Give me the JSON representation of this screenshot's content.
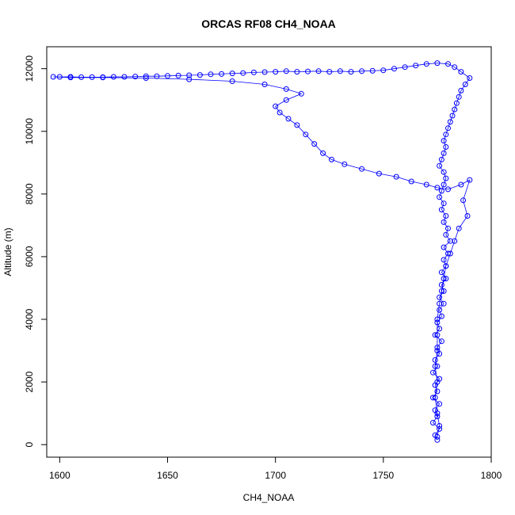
{
  "chart_data": {
    "type": "scatter",
    "title": "ORCAS RF08 CH4_NOAA",
    "xlabel": "CH4_NOAA",
    "ylabel": "Altitude (m)",
    "xlim": [
      1594,
      1800
    ],
    "ylim": [
      -400,
      12700
    ],
    "x_ticks": [
      1600,
      1650,
      1700,
      1750,
      1800
    ],
    "y_ticks": [
      0,
      2000,
      4000,
      6000,
      8000,
      10000,
      12000
    ],
    "grid": false,
    "legend": "none",
    "marker": "open-circle",
    "connect_points": true,
    "series": [
      {
        "color": "#0000ff",
        "points": [
          [
            1775,
            150
          ],
          [
            1774,
            300
          ],
          [
            1776,
            500
          ],
          [
            1773,
            700
          ],
          [
            1775,
            900
          ],
          [
            1774,
            1100
          ],
          [
            1776,
            1300
          ],
          [
            1773,
            1500
          ],
          [
            1775,
            1700
          ],
          [
            1774,
            1900
          ],
          [
            1776,
            2100
          ],
          [
            1773,
            2300
          ],
          [
            1775,
            2500
          ],
          [
            1774,
            2700
          ],
          [
            1776,
            2900
          ],
          [
            1775,
            3100
          ],
          [
            1777,
            3300
          ],
          [
            1774,
            3500
          ],
          [
            1776,
            3700
          ],
          [
            1775,
            3900
          ],
          [
            1777,
            4100
          ],
          [
            1776,
            4300
          ],
          [
            1778,
            4500
          ],
          [
            1776,
            4700
          ],
          [
            1778,
            4900
          ],
          [
            1777,
            5100
          ],
          [
            1779,
            5300
          ],
          [
            1777,
            5500
          ],
          [
            1779,
            5700
          ],
          [
            1778,
            5900
          ],
          [
            1780,
            6100
          ],
          [
            1778,
            6300
          ],
          [
            1781,
            6500
          ],
          [
            1779,
            6700
          ],
          [
            1780,
            6900
          ],
          [
            1778,
            7100
          ],
          [
            1779,
            7300
          ],
          [
            1777,
            7500
          ],
          [
            1778,
            7700
          ],
          [
            1776,
            7900
          ],
          [
            1777,
            8100
          ],
          [
            1778,
            8300
          ],
          [
            1779,
            8500
          ],
          [
            1778,
            8700
          ],
          [
            1776,
            8900
          ],
          [
            1777,
            9100
          ],
          [
            1778,
            9300
          ],
          [
            1779,
            9500
          ],
          [
            1778,
            9700
          ],
          [
            1779,
            9900
          ],
          [
            1780,
            10100
          ],
          [
            1781,
            10300
          ],
          [
            1782,
            10500
          ],
          [
            1783,
            10700
          ],
          [
            1784,
            10900
          ],
          [
            1785,
            11100
          ],
          [
            1786,
            11300
          ],
          [
            1788,
            11500
          ],
          [
            1790,
            11700
          ],
          [
            1786,
            11900
          ],
          [
            1783,
            12050
          ],
          [
            1780,
            12150
          ],
          [
            1775,
            12180
          ],
          [
            1770,
            12150
          ],
          [
            1765,
            12100
          ],
          [
            1760,
            12050
          ],
          [
            1755,
            12000
          ],
          [
            1750,
            11950
          ],
          [
            1745,
            11930
          ],
          [
            1740,
            11920
          ],
          [
            1735,
            11900
          ],
          [
            1730,
            11920
          ],
          [
            1725,
            11900
          ],
          [
            1720,
            11920
          ],
          [
            1715,
            11910
          ],
          [
            1710,
            11900
          ],
          [
            1705,
            11920
          ],
          [
            1700,
            11900
          ],
          [
            1695,
            11890
          ],
          [
            1690,
            11880
          ],
          [
            1685,
            11860
          ],
          [
            1680,
            11850
          ],
          [
            1675,
            11830
          ],
          [
            1670,
            11820
          ],
          [
            1665,
            11800
          ],
          [
            1660,
            11790
          ],
          [
            1655,
            11780
          ],
          [
            1650,
            11770
          ],
          [
            1645,
            11760
          ],
          [
            1640,
            11760
          ],
          [
            1635,
            11750
          ],
          [
            1630,
            11740
          ],
          [
            1625,
            11740
          ],
          [
            1620,
            11730
          ],
          [
            1615,
            11730
          ],
          [
            1610,
            11730
          ],
          [
            1605,
            11740
          ],
          [
            1600,
            11740
          ],
          [
            1597,
            11740
          ],
          [
            1605,
            11720
          ],
          [
            1620,
            11720
          ],
          [
            1640,
            11700
          ],
          [
            1660,
            11660
          ],
          [
            1680,
            11600
          ],
          [
            1695,
            11500
          ],
          [
            1705,
            11350
          ],
          [
            1712,
            11200
          ],
          [
            1705,
            11000
          ],
          [
            1700,
            10800
          ],
          [
            1702,
            10600
          ],
          [
            1706,
            10400
          ],
          [
            1710,
            10200
          ],
          [
            1714,
            9900
          ],
          [
            1718,
            9600
          ],
          [
            1722,
            9300
          ],
          [
            1726,
            9100
          ],
          [
            1732,
            8950
          ],
          [
            1740,
            8800
          ],
          [
            1748,
            8650
          ],
          [
            1756,
            8550
          ],
          [
            1763,
            8400
          ],
          [
            1770,
            8300
          ],
          [
            1775,
            8200
          ],
          [
            1780,
            8150
          ],
          [
            1786,
            8300
          ],
          [
            1790,
            8450
          ],
          [
            1787,
            7800
          ],
          [
            1789,
            7300
          ],
          [
            1785,
            6900
          ],
          [
            1783,
            6500
          ],
          [
            1781,
            6100
          ],
          [
            1779,
            5700
          ],
          [
            1778,
            5300
          ],
          [
            1777,
            4900
          ],
          [
            1776,
            4500
          ],
          [
            1775,
            4000
          ],
          [
            1775,
            3500
          ],
          [
            1775,
            3000
          ],
          [
            1774,
            2500
          ],
          [
            1775,
            2000
          ],
          [
            1774,
            1500
          ],
          [
            1775,
            1000
          ],
          [
            1776,
            600
          ],
          [
            1775,
            250
          ]
        ]
      }
    ]
  }
}
